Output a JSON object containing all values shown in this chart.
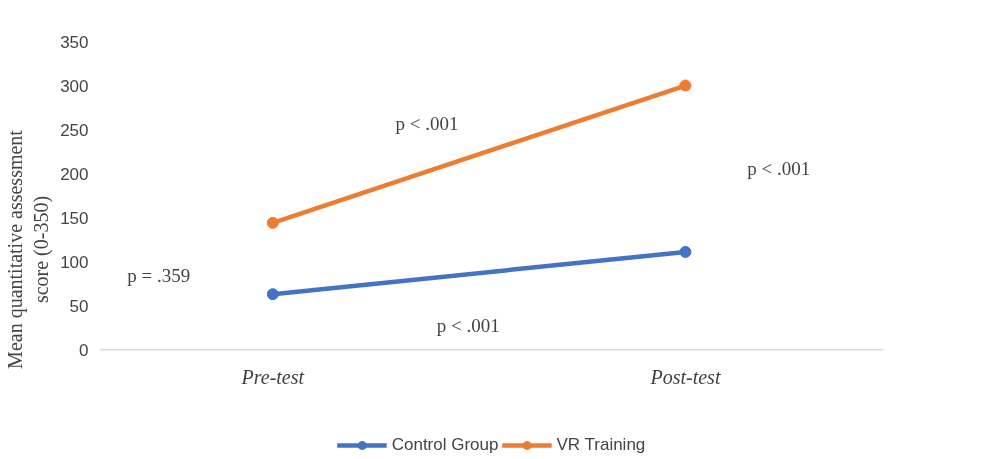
{
  "chart_data": {
    "type": "line",
    "ylabel": "Mean quantitative assessment score (0-350)",
    "categories": [
      "Pre-test",
      "Post-test"
    ],
    "series": [
      {
        "name": "Control Group",
        "color": "#4472c4",
        "values": [
          63,
          111
        ]
      },
      {
        "name": "VR Training",
        "color": "#ed7d31",
        "values": [
          144,
          300
        ]
      }
    ],
    "ylim": [
      0,
      350
    ],
    "yticks": [
      0,
      50,
      100,
      150,
      200,
      250,
      300,
      350
    ],
    "marker": "circle",
    "line_style": "solid",
    "legend": "bottom",
    "grid": false,
    "annotations": [
      "p = .359",
      "p < .001",
      "p < .001",
      "p < .001"
    ]
  }
}
